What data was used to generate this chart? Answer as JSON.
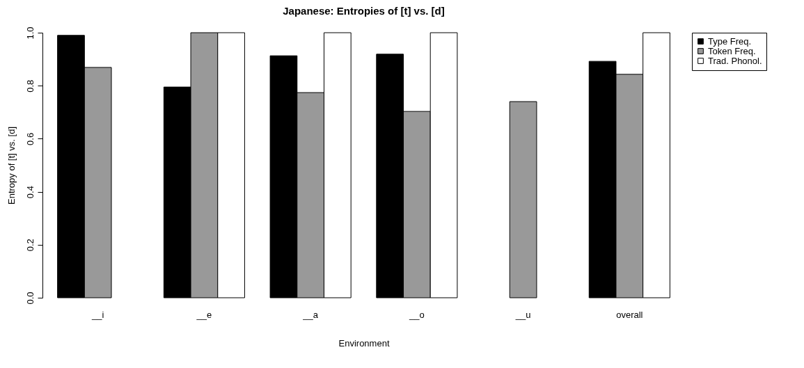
{
  "chart_data": {
    "type": "bar",
    "title": "Japanese: Entropies of [t] vs. [d]",
    "xlabel": "Environment",
    "ylabel": "Entropy of [t] vs. [d]",
    "categories": [
      "__i",
      "__e",
      "__a",
      "__o",
      "__u",
      "overall"
    ],
    "series": [
      {
        "name": "Type Freq.",
        "color": "#000000",
        "values": [
          0.99,
          0.795,
          0.913,
          0.919,
          0,
          0.892
        ]
      },
      {
        "name": "Token Freq.",
        "color": "#999999",
        "values": [
          0.869,
          1.0,
          0.774,
          0.703,
          0.74,
          0.843
        ]
      },
      {
        "name": "Trad. Phonol.",
        "color": "#ffffff",
        "values": [
          0,
          1.0,
          1.0,
          1.0,
          0,
          1.0
        ]
      }
    ],
    "ylim": [
      0,
      1.0
    ],
    "yticks": [
      {
        "value": 0,
        "label": "0.0"
      },
      {
        "value": 0.2,
        "label": "0.2"
      },
      {
        "value": 0.4,
        "label": "0.4"
      },
      {
        "value": 0.6,
        "label": "0.6"
      },
      {
        "value": 0.8,
        "label": "0.8"
      },
      {
        "value": 1.0,
        "label": "1.0"
      }
    ],
    "grid": false,
    "legend": "right"
  }
}
